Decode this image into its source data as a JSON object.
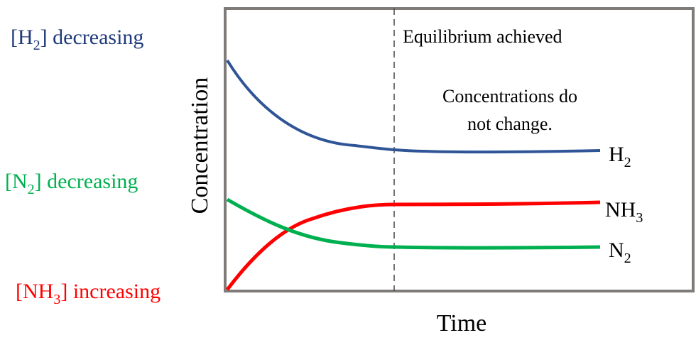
{
  "labels": {
    "h2_decreasing": {
      "open": "[H",
      "sub": "2",
      "close": "] decreasing"
    },
    "n2_decreasing": {
      "open": "[N",
      "sub": "2",
      "close": "] decreasing"
    },
    "nh3_increasing": {
      "open": "[NH",
      "sub": "3",
      "close": "] increasing"
    },
    "y_axis": "Concentration",
    "x_axis": "Time",
    "equilibrium": "Equilibrium achieved",
    "note_line1": "Concentrations do",
    "note_line2": "not change."
  },
  "series": {
    "h2": {
      "base": "H",
      "sub": "2",
      "color": "#2f5597",
      "label_color": "#1f3a7a"
    },
    "nh3": {
      "base": "NH",
      "sub": "3",
      "color": "#ff0000",
      "label_color": "#ff0000"
    },
    "n2": {
      "base": "N",
      "sub": "2",
      "color": "#00b050",
      "label_color": "#00b050"
    }
  },
  "frame_color": "#7f7b78"
}
